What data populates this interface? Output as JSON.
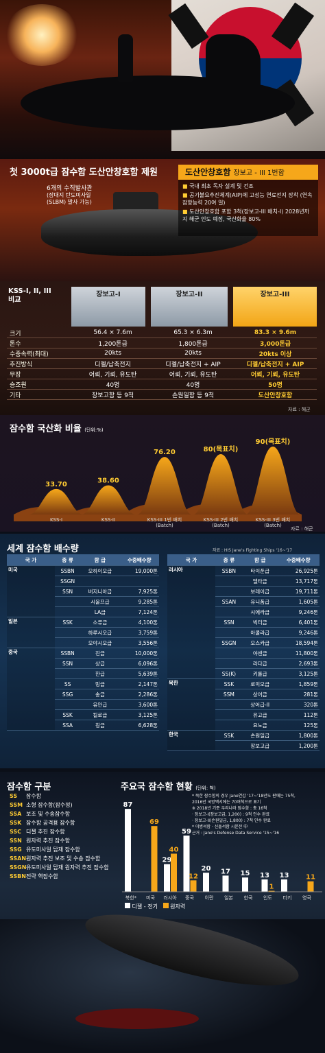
{
  "headline": "첫 3000t급 잠수함 도산안창호함 제원",
  "slbm_note": {
    "line1": "6개의 수직발사관",
    "line2": "(장대지 탄도미사일",
    "line3": "(SLBM) 발사 가능)"
  },
  "info_box": {
    "title": "도산안창호함",
    "subtitle": "장보고 - III 1번함",
    "bullets": [
      "국내 최초 독자 설계 및 건조",
      "공기불요추진체계(AIP)에 고성능 연료전지 장착 (연속 잠항능력 20여 일)",
      "도산안창호함 포함 3척(장보고-III 배치-I) 2028년까지 해군 인도 예정, 국산화율 80%"
    ]
  },
  "compare": {
    "label_line1": "KSS-I, II, III",
    "label_line2": "비교",
    "headers": [
      "장보고-I",
      "장보고-II",
      "장보고-III"
    ],
    "rows": [
      {
        "label": "크기",
        "v": [
          "56.4 × 7.6m",
          "65.3 × 6.3m",
          "83.3 × 9.6m"
        ]
      },
      {
        "label": "톤수",
        "v": [
          "1,200톤급",
          "1,800톤급",
          "3,000톤급"
        ]
      },
      {
        "label": "수중속력(최대)",
        "v": [
          "20kts",
          "20kts",
          "20kts 이상"
        ]
      },
      {
        "label": "추진방식",
        "v": [
          "디젤/납축전지",
          "디젤/납축전지 + AIP",
          "디젤/납축전지 + AIP"
        ]
      },
      {
        "label": "무장",
        "v": [
          "어뢰, 기뢰, 유도탄",
          "어뢰, 기뢰, 유도탄",
          "어뢰, 기뢰, 유도탄"
        ]
      },
      {
        "label": "승조원",
        "v": [
          "40명",
          "40명",
          "50명"
        ]
      },
      {
        "label": "기타",
        "v": [
          "장보고함 등 9척",
          "손원일함 등 9척",
          "도산안창호함"
        ]
      }
    ],
    "source": "자료 : 해군"
  },
  "localization": {
    "title": "잠수함 국산화 비율",
    "unit": "(단위:%)",
    "source": "자료 : 해군",
    "chart_data": {
      "type": "area",
      "categories": [
        "KSS-I",
        "KSS-II",
        "KSS-III 1번 배치 (Batch)",
        "KSS-III 2번 배치 (Batch)",
        "KSS-III 3번 배치 (Batch)"
      ],
      "labels": [
        "33.70",
        "38.60",
        "76.20",
        "80(목표치)",
        "90(목표치)"
      ],
      "values": [
        33.7,
        38.6,
        76.2,
        80,
        90
      ],
      "colors": {
        "peak": "#f6a71a",
        "base": "#7a3a10"
      }
    }
  },
  "world": {
    "title": "세계 잠수함 배수량",
    "source": "자료 : HIS Jane's Fighting Ships '16~'17",
    "headers": [
      "국 가",
      "종 류",
      "함 급",
      "수중배수량"
    ],
    "left": [
      {
        "country": "미국",
        "rows": [
          [
            "SSBN",
            "오하이오급",
            "19,000톤"
          ],
          [
            "SSGN",
            "",
            ""
          ],
          [
            "SSN",
            "버지니아급",
            "7,925톤"
          ],
          [
            "",
            "시울프급",
            "9,285톤"
          ],
          [
            "",
            "LA급",
            "7,124톤"
          ]
        ]
      },
      {
        "country": "일본",
        "rows": [
          [
            "SSK",
            "소류급",
            "4,100톤"
          ],
          [
            "",
            "하루시오급",
            "3,759톤"
          ],
          [
            "",
            "오야시오급",
            "3,556톤"
          ]
        ]
      },
      {
        "country": "중국",
        "rows": [
          [
            "SSBN",
            "진급",
            "10,000톤"
          ],
          [
            "SSN",
            "상급",
            "6,096톤"
          ],
          [
            "",
            "한급",
            "5,639톤"
          ],
          [
            "SS",
            "밍급",
            "2,147톤"
          ],
          [
            "SSG",
            "송급",
            "2,286톤"
          ],
          [
            "",
            "유안급",
            "3,600톤"
          ],
          [
            "SSK",
            "킬로급",
            "3,125톤"
          ],
          [
            "SSA",
            "칭급",
            "6,628톤"
          ]
        ]
      }
    ],
    "right": [
      {
        "country": "러시아",
        "rows": [
          [
            "SSBN",
            "타이푼급",
            "26,925톤"
          ],
          [
            "",
            "델타급",
            "13,717톤"
          ],
          [
            "",
            "보레이급",
            "19,711톤"
          ],
          [
            "SSAN",
            "유니폼급",
            "1,605톤"
          ],
          [
            "",
            "시에라급",
            "9,246톤"
          ],
          [
            "SSN",
            "빅터급",
            "6,401톤"
          ],
          [
            "",
            "아쿨라급",
            "9,246톤"
          ],
          [
            "SSGN",
            "오스카급",
            "18,594톤"
          ],
          [
            "",
            "야센급",
            "11,800톤"
          ],
          [
            "",
            "라다급",
            "2,693톤"
          ],
          [
            "SS(K)",
            "키롤급",
            "3,125톤"
          ]
        ]
      },
      {
        "country": "북한",
        "rows": [
          [
            "SSK",
            "로미오급",
            "1,859톤"
          ],
          [
            "SSM",
            "상어급",
            "281톤"
          ],
          [
            "",
            "상어급-II",
            "320톤"
          ],
          [
            "",
            "유고급",
            "112톤"
          ],
          [
            "",
            "요노급",
            "125톤"
          ]
        ]
      },
      {
        "country": "한국",
        "rows": [
          [
            "SSK",
            "손원일급",
            "1,800톤"
          ],
          [
            "",
            "장보고급",
            "1,200톤"
          ]
        ]
      }
    ]
  },
  "classification": {
    "title": "잠수함 구분",
    "items": [
      {
        "k": "SS",
        "v": "잠수함"
      },
      {
        "k": "SSM",
        "v": "소형 잠수함(잠수정)"
      },
      {
        "k": "SSA",
        "v": "보조 및 수송잠수함"
      },
      {
        "k": "SSK",
        "v": "잠수함 공격용 잠수함"
      },
      {
        "k": "SSC",
        "v": "디젤 추진 잠수함"
      },
      {
        "k": "SSN",
        "v": "원자력 추진 잠수함"
      },
      {
        "k": "SSG",
        "v": "유도미사일 탑재 잠수함"
      },
      {
        "k": "SSAN",
        "v": "원자력 추진 보조 및 수송 잠수함"
      },
      {
        "k": "SSGN",
        "v": "유도미사일 탑재 원자력 추진 잠수함"
      },
      {
        "k": "SSBN",
        "v": "전략 핵잠수함"
      }
    ]
  },
  "major": {
    "title": "주요국 잠수함 현황",
    "unit": "(단위: 척)",
    "notes": [
      "* 북한 잠수함의 경우 Jane연감 '17~'18년도 판에는 75척,",
      "2016년 국방백서에는 70여척으로 표기",
      "※ 2018년 기준 우리나라 잠수함 : 총 16척",
      "· 장보고-I(장보고급, 1,200) : 9척 인수 완료",
      "· 장보고-II(손원일급, 1,800) : 7척 인수 완료",
      "* 이병석함 · 신돌석함 시운전 中",
      "근거 : Jane's Defense Data Service '15~'16"
    ],
    "legend": {
      "diesel": "디젤 - 전기",
      "nuclear": "원자력"
    },
    "chart_data": {
      "type": "bar",
      "categories": [
        "북한*",
        "미국",
        "러시아",
        "중국",
        "이란",
        "일본",
        "한국",
        "인도",
        "터키",
        "영국"
      ],
      "series": [
        {
          "name": "디젤-전기",
          "values": [
            87,
            0,
            29,
            59,
            20,
            17,
            15,
            13,
            13,
            0
          ],
          "color": "#ffffff"
        },
        {
          "name": "원자력",
          "values": [
            0,
            69,
            40,
            12,
            0,
            0,
            0,
            1,
            0,
            11
          ],
          "color": "#f6a71a"
        }
      ],
      "ylim": [
        0,
        90
      ]
    }
  }
}
